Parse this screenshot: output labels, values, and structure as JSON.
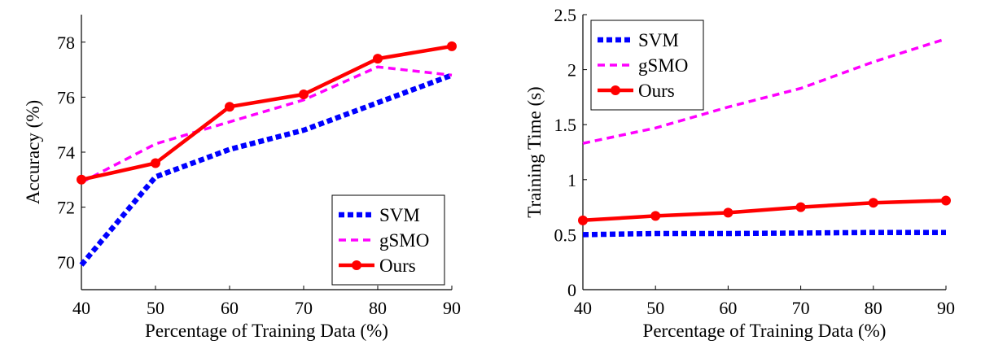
{
  "chart_data": [
    {
      "type": "line",
      "title": "",
      "xlabel": "Percentage of Training Data (%)",
      "ylabel": "Accuracy (%)",
      "x": [
        40,
        50,
        60,
        70,
        80,
        90
      ],
      "xlim": [
        40,
        90
      ],
      "ylim": [
        69,
        79
      ],
      "xticks": [
        "40",
        "50",
        "60",
        "70",
        "80",
        "90"
      ],
      "yticks": [
        "70",
        "72",
        "74",
        "76",
        "78"
      ],
      "ytick_values": [
        70,
        72,
        74,
        76,
        78
      ],
      "grid": false,
      "legend_position": "bottom-right",
      "series": [
        {
          "name": "SVM",
          "color": "#0000ff",
          "style": "dotted",
          "marker": "none",
          "values": [
            69.9,
            73.1,
            74.1,
            74.8,
            75.8,
            76.8
          ]
        },
        {
          "name": "gSMO",
          "color": "#ff00ff",
          "style": "dashed",
          "marker": "none",
          "values": [
            72.9,
            74.3,
            75.1,
            75.9,
            77.1,
            76.8
          ]
        },
        {
          "name": "Ours",
          "color": "#ff0000",
          "style": "solid",
          "marker": "circle",
          "values": [
            73.0,
            73.6,
            75.65,
            76.1,
            77.4,
            77.85
          ]
        }
      ]
    },
    {
      "type": "line",
      "title": "",
      "xlabel": "Percentage of Training Data (%)",
      "ylabel": "Training Time (s)",
      "x": [
        40,
        50,
        60,
        70,
        80,
        90
      ],
      "xlim": [
        40,
        90
      ],
      "ylim": [
        0,
        2.5
      ],
      "xticks": [
        "40",
        "50",
        "60",
        "70",
        "80",
        "90"
      ],
      "yticks": [
        "0",
        "0.5",
        "1",
        "1.5",
        "2",
        "2.5"
      ],
      "ytick_values": [
        0,
        0.5,
        1,
        1.5,
        2,
        2.5
      ],
      "grid": false,
      "legend_position": "top-left",
      "series": [
        {
          "name": "SVM",
          "color": "#0000ff",
          "style": "dotted",
          "marker": "none",
          "values": [
            0.5,
            0.51,
            0.51,
            0.515,
            0.52,
            0.52
          ]
        },
        {
          "name": "gSMO",
          "color": "#ff00ff",
          "style": "dashed",
          "marker": "none",
          "values": [
            1.33,
            1.47,
            1.66,
            1.83,
            2.07,
            2.28
          ]
        },
        {
          "name": "Ours",
          "color": "#ff0000",
          "style": "solid",
          "marker": "circle",
          "values": [
            0.63,
            0.67,
            0.7,
            0.75,
            0.79,
            0.81
          ]
        }
      ]
    }
  ]
}
